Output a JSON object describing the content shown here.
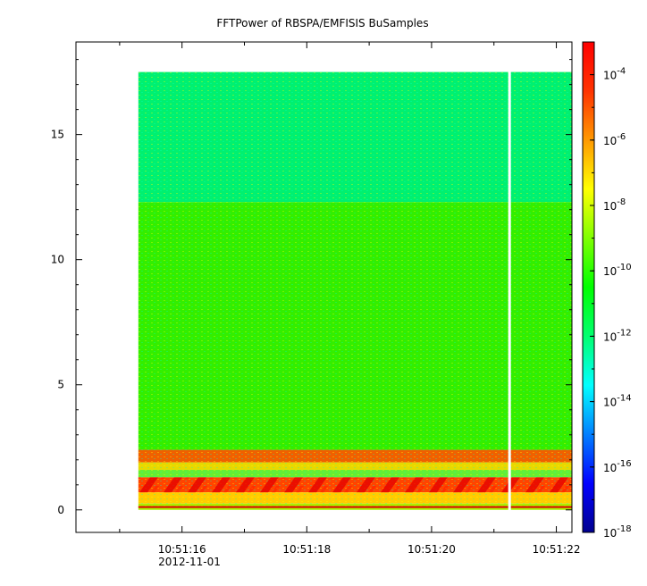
{
  "chart_data": {
    "type": "heatmap",
    "title": "FFTPower of RBSPA/EMFISIS  BuSamples",
    "xlabel": "",
    "ylabel": "",
    "x_date_label": "2012-11-01",
    "x_ticks": [
      "10:51:16",
      "10:51:18",
      "10:51:20",
      "10:51:22"
    ],
    "x_range": [
      "10:51:14.30",
      "10:51:22.25"
    ],
    "data_time_range": [
      "10:51:15.30",
      "10:51:22.25"
    ],
    "data_gap": "10:51:21.25",
    "y_ticks": [
      0,
      5,
      10,
      15
    ],
    "ylim": [
      -0.9,
      18.7
    ],
    "data_y_range": [
      0,
      17.5
    ],
    "colorbar": {
      "scale": "log",
      "range": [
        1e-18,
        0.001
      ],
      "ticks": [
        {
          "base": "10",
          "exp": "-4"
        },
        {
          "base": "10",
          "exp": "-6"
        },
        {
          "base": "10",
          "exp": "-8"
        },
        {
          "base": "10",
          "exp": "-10"
        },
        {
          "base": "10",
          "exp": "-12"
        },
        {
          "base": "10",
          "exp": "-14"
        },
        {
          "base": "10",
          "exp": "-16"
        },
        {
          "base": "10",
          "exp": "-18"
        }
      ],
      "colors": [
        "#00008f",
        "#0000ff",
        "#007fff",
        "#00ffff",
        "#00ff70",
        "#00ff00",
        "#7fff00",
        "#ffff00",
        "#ff9900",
        "#ff3300",
        "#ff0000"
      ]
    },
    "bands": [
      {
        "y_range": [
          12.3,
          17.5
        ],
        "level": "1e-12",
        "color": "#00f070"
      },
      {
        "y_range": [
          2.4,
          12.3
        ],
        "level": "1e-10",
        "color": "#33ee00"
      },
      {
        "y_range": [
          1.9,
          2.4
        ],
        "level": "1e-7",
        "color": "#f06000"
      },
      {
        "y_range": [
          1.6,
          1.9
        ],
        "level": "1e-9",
        "color": "#e8d800"
      },
      {
        "y_range": [
          1.3,
          1.6
        ],
        "level": "1e-10",
        "color": "#66ee33"
      },
      {
        "y_range": [
          0.7,
          1.3
        ],
        "level": "1e-6",
        "color": "#ff4400"
      },
      {
        "y_range": [
          0.25,
          0.7
        ],
        "level": "1e-8",
        "color": "#ffcc00"
      },
      {
        "y_range": [
          0.0,
          0.25
        ],
        "level": "1e-9",
        "color": "#aaee00"
      }
    ]
  }
}
